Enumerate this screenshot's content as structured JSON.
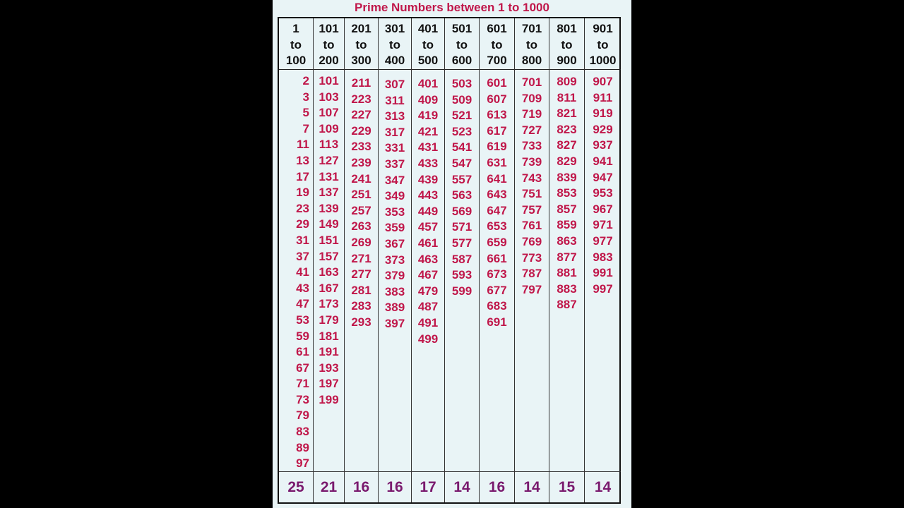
{
  "title": "Prime Numbers between 1 to 1000",
  "colors": {
    "background": "#e9f4f6",
    "primes": "#c0174a",
    "counts": "#7a1a6e",
    "header": "#111111"
  },
  "columns": [
    {
      "header": [
        "1",
        "to",
        "100"
      ],
      "primes": [
        "2",
        "3",
        "5",
        "7",
        "11",
        "13",
        "17",
        "19",
        "23",
        "29",
        "31",
        "37",
        "41",
        "43",
        "47",
        "53",
        "59",
        "61",
        "67",
        "71",
        "73",
        "79",
        "83",
        "89",
        "97"
      ],
      "count": "25"
    },
    {
      "header": [
        "101",
        "to",
        "200"
      ],
      "primes": [
        "101",
        "103",
        "107",
        "109",
        "113",
        "127",
        "131",
        "137",
        "139",
        "149",
        "151",
        "157",
        "163",
        "167",
        "173",
        "179",
        "181",
        "191",
        "193",
        "197",
        "199"
      ],
      "count": "21"
    },
    {
      "header": [
        "201",
        "to",
        "300"
      ],
      "primes": [
        "211",
        "223",
        "227",
        "229",
        "233",
        "239",
        "241",
        "251",
        "257",
        "263",
        "269",
        "271",
        "277",
        "281",
        "283",
        "293"
      ],
      "count": "16"
    },
    {
      "header": [
        "301",
        "to",
        "400"
      ],
      "primes": [
        "307",
        "311",
        "313",
        "317",
        "331",
        "337",
        "347",
        "349",
        "353",
        "359",
        "367",
        "373",
        "379",
        "383",
        "389",
        "397"
      ],
      "count": "16"
    },
    {
      "header": [
        "401",
        "to",
        "500"
      ],
      "primes": [
        "401",
        "409",
        "419",
        "421",
        "431",
        "433",
        "439",
        "443",
        "449",
        "457",
        "461",
        "463",
        "467",
        "479",
        "487",
        "491",
        "499"
      ],
      "count": "17"
    },
    {
      "header": [
        "501",
        "to",
        "600"
      ],
      "primes": [
        "503",
        "509",
        "521",
        "523",
        "541",
        "547",
        "557",
        "563",
        "569",
        "571",
        "577",
        "587",
        "593",
        "599"
      ],
      "count": "14"
    },
    {
      "header": [
        "601",
        "to",
        "700"
      ],
      "primes": [
        "601",
        "607",
        "613",
        "617",
        "619",
        "631",
        "641",
        "643",
        "647",
        "653",
        "659",
        "661",
        "673",
        "677",
        "683",
        "691"
      ],
      "count": "16"
    },
    {
      "header": [
        "701",
        "to",
        "800"
      ],
      "primes": [
        "701",
        "709",
        "719",
        "727",
        "733",
        "739",
        "743",
        "751",
        "757",
        "761",
        "769",
        "773",
        "787",
        "797"
      ],
      "count": "14"
    },
    {
      "header": [
        "801",
        "to",
        "900"
      ],
      "primes": [
        "809",
        "811",
        "821",
        "823",
        "827",
        "829",
        "839",
        "853",
        "857",
        "859",
        "863",
        "877",
        "881",
        "883",
        "887"
      ],
      "count": "15"
    },
    {
      "header": [
        "901",
        "to",
        "1000"
      ],
      "primes": [
        "907",
        "911",
        "919",
        "929",
        "937",
        "941",
        "947",
        "953",
        "967",
        "971",
        "977",
        "983",
        "991",
        "997"
      ],
      "count": "14"
    }
  ]
}
